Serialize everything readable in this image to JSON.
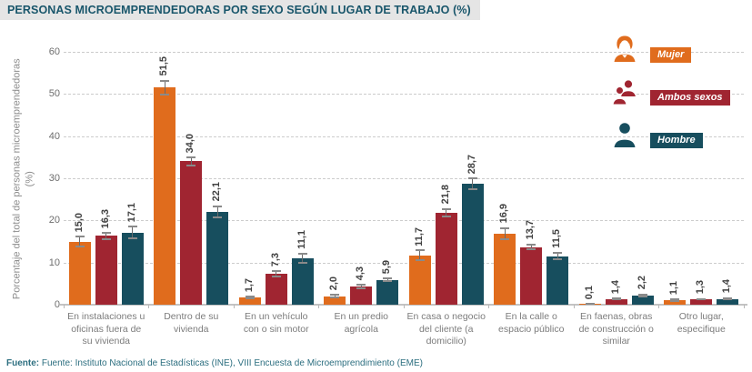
{
  "title": "PERSONAS MICROEMPRENDEDORAS POR SEXO SEGÚN LUGAR DE TRABAJO (%)",
  "source": {
    "label": "Fuente:",
    "text": " Fuente: Instituto Nacional de Estadísticas (INE), VIII Encuesta de Microemprendimiento (EME)"
  },
  "colors": {
    "mujer": "#e06c1d",
    "ambos": "#a02531",
    "hombre": "#174e5e",
    "title_text": "#19566b",
    "grid": "#cccccc",
    "title_bg": "#e5e5e5"
  },
  "legend": {
    "position": "top-right",
    "items": [
      {
        "label": "Mujer",
        "icon": "woman-icon",
        "color": "#e06c1d"
      },
      {
        "label": "Ambos sexos",
        "icon": "couple-icon",
        "color": "#a02531"
      },
      {
        "label": "Hombre",
        "icon": "man-icon",
        "color": "#174e5e"
      }
    ]
  },
  "chart_data": {
    "type": "bar",
    "title": "PERSONAS MICROEMPRENDEDORAS POR SEXO SEGÚN LUGAR DE TRABAJO (%)",
    "xlabel": "",
    "ylabel": "Porcentaje del total de personas microemprendedoras (%)",
    "ylim": [
      0,
      60
    ],
    "yticks": [
      0,
      10,
      20,
      30,
      40,
      50,
      60
    ],
    "grid": "horizontal-dashed",
    "legend_position": "top-right",
    "decimal_separator": ",",
    "error_bars": true,
    "categories": [
      "En instalaciones u oficinas fuera de su vivienda",
      "Dentro de su vivienda",
      "En un vehículo con o sin motor",
      "En un predio agrícola",
      "En casa o negocio del cliente (a domicilio)",
      "En la calle o espacio público",
      "En faenas, obras de construcción o similar",
      "Otro lugar, especifique"
    ],
    "series": [
      {
        "name": "Mujer",
        "color": "#e06c1d",
        "values": [
          15.0,
          51.5,
          1.7,
          2.0,
          11.7,
          16.9,
          0.1,
          1.1
        ],
        "errors": [
          1.4,
          1.9,
          0.5,
          0.5,
          1.4,
          1.5,
          0.15,
          0.4
        ]
      },
      {
        "name": "Ambos sexos",
        "color": "#a02531",
        "values": [
          16.3,
          34.0,
          7.3,
          4.3,
          21.8,
          13.7,
          1.4,
          1.3
        ],
        "errors": [
          0.9,
          1.1,
          0.9,
          0.6,
          1.1,
          0.8,
          0.3,
          0.3
        ]
      },
      {
        "name": "Hombre",
        "color": "#174e5e",
        "values": [
          17.1,
          22.1,
          11.1,
          5.9,
          28.7,
          11.5,
          2.2,
          1.4
        ],
        "errors": [
          1.6,
          1.5,
          1.3,
          0.6,
          1.5,
          1.0,
          0.5,
          0.4
        ]
      }
    ]
  }
}
